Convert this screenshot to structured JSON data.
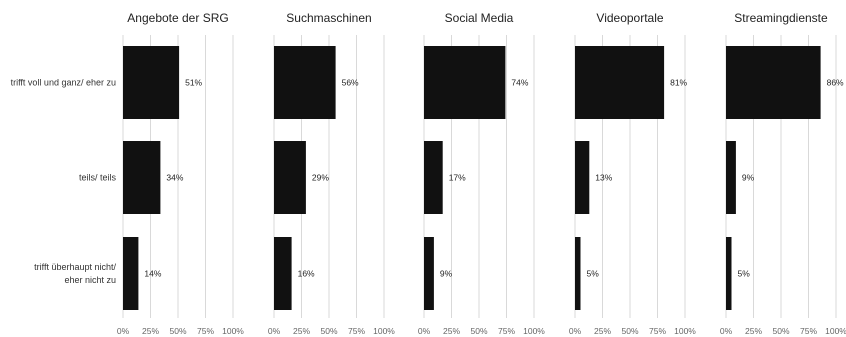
{
  "chart_data": {
    "type": "bar",
    "orientation": "horizontal",
    "grid": true,
    "xlim": [
      0,
      100
    ],
    "ticks": [
      0,
      25,
      50,
      75,
      100
    ],
    "tick_labels": [
      "0%",
      "25%",
      "50%",
      "75%",
      "100%"
    ],
    "categories": [
      [
        "trifft voll und ganz/ eher zu"
      ],
      [
        "teils/ teils"
      ],
      [
        "trifft überhaupt nicht/",
        "eher nicht zu"
      ]
    ],
    "bar_color": "#111111",
    "grid_color": "#d9d9d9",
    "panels": [
      {
        "title": "Angebote der SRG",
        "values": [
          51,
          34,
          14
        ],
        "labels": [
          "51%",
          "34%",
          "14%"
        ]
      },
      {
        "title": "Suchmaschinen",
        "values": [
          56,
          29,
          16
        ],
        "labels": [
          "56%",
          "29%",
          "16%"
        ]
      },
      {
        "title": "Social Media",
        "values": [
          74,
          17,
          9
        ],
        "labels": [
          "74%",
          "17%",
          "9%"
        ]
      },
      {
        "title": "Videoportale",
        "values": [
          81,
          13,
          5
        ],
        "labels": [
          "81%",
          "13%",
          "5%"
        ]
      },
      {
        "title": "Streamingdienste",
        "values": [
          86,
          9,
          5
        ],
        "labels": [
          "86%",
          "9%",
          "5%"
        ]
      }
    ]
  }
}
